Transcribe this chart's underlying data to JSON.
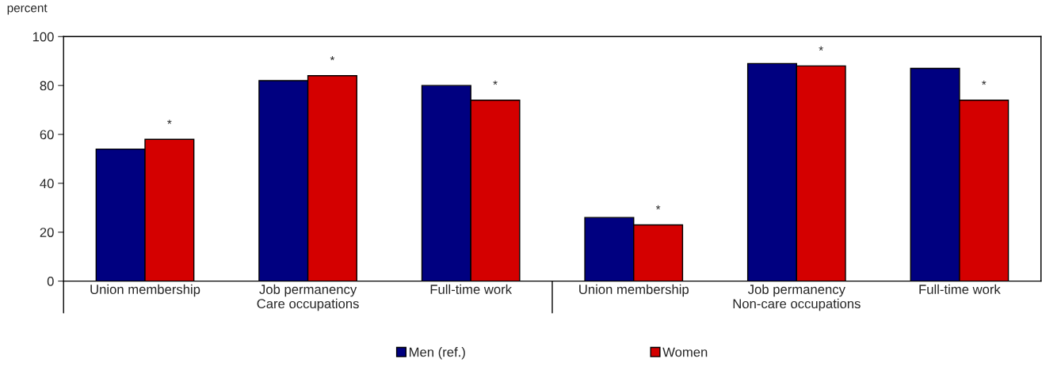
{
  "chart_data": {
    "type": "bar",
    "ylabel": "percent",
    "categories": [
      "Union membership",
      "Job permanency",
      "Full-time work",
      "Union membership",
      "Job permanency",
      "Full-time work"
    ],
    "series": [
      {
        "name": "Men (ref.)",
        "color": "#000080",
        "values": [
          54,
          82,
          80,
          26,
          89,
          87
        ]
      },
      {
        "name": "Women",
        "color": "#d40000",
        "values": [
          58,
          84,
          74,
          23,
          88,
          74
        ],
        "value_labels": [
          "*",
          "*",
          "*",
          "*",
          "*",
          "*"
        ]
      }
    ],
    "annotations": [
      "Care occupations",
      "Non-care occupations"
    ],
    "ylim": [
      0,
      100
    ],
    "yticks": [
      0,
      20,
      40,
      60,
      80,
      100
    ],
    "grid": false,
    "legend": "bottom"
  }
}
